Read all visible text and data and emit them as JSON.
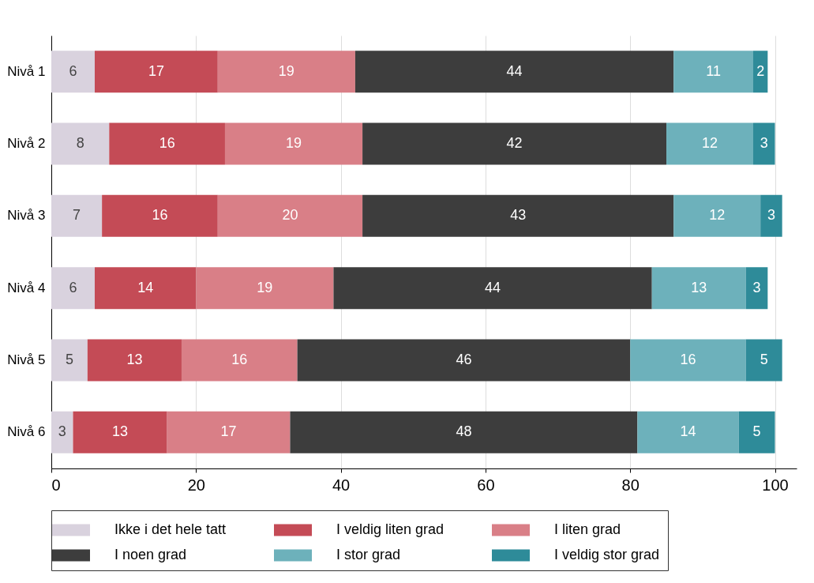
{
  "chart_data": {
    "type": "bar",
    "orientation": "horizontal",
    "stacked": true,
    "data_labels": true,
    "grid": "x",
    "legend": "bottom",
    "categories": [
      "Nivå 1",
      "Nivå 2",
      "Nivå 3",
      "Nivå 4",
      "Nivå 5",
      "Nivå 6"
    ],
    "xlim": [
      0,
      103
    ],
    "xticks": [
      0,
      20,
      40,
      60,
      80,
      100
    ],
    "series": [
      {
        "name": "Ikke i det hele tatt",
        "color": "#d9d2de",
        "values": [
          6,
          8,
          7,
          6,
          5,
          3
        ]
      },
      {
        "name": "I veldig liten grad",
        "color": "#c44b56",
        "values": [
          17,
          16,
          16,
          14,
          13,
          13
        ]
      },
      {
        "name": "I liten grad",
        "color": "#d97f87",
        "values": [
          19,
          19,
          20,
          19,
          16,
          17
        ]
      },
      {
        "name": "I noen grad",
        "color": "#3d3d3d",
        "values": [
          44,
          42,
          43,
          44,
          46,
          48
        ]
      },
      {
        "name": "I stor grad",
        "color": "#6db1bb",
        "values": [
          11,
          12,
          12,
          13,
          16,
          14
        ]
      },
      {
        "name": "I veldig stor grad",
        "color": "#2e8b99",
        "values": [
          2,
          3,
          3,
          3,
          5,
          5
        ]
      }
    ]
  }
}
